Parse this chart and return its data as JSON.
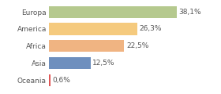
{
  "categories": [
    "Europa",
    "America",
    "Africa",
    "Asia",
    "Oceania"
  ],
  "values": [
    38.1,
    26.3,
    22.5,
    12.5,
    0.6
  ],
  "labels": [
    "38,1%",
    "26,3%",
    "22,5%",
    "12,5%",
    "0,6%"
  ],
  "bar_colors": [
    "#b5c98e",
    "#f5ca7e",
    "#f0b482",
    "#6e8fbe",
    "#e05555"
  ],
  "background_color": "#ffffff",
  "xlim": [
    0,
    50
  ],
  "label_fontsize": 6.5,
  "tick_fontsize": 6.5,
  "figsize": [
    2.8,
    1.2
  ],
  "dpi": 100
}
